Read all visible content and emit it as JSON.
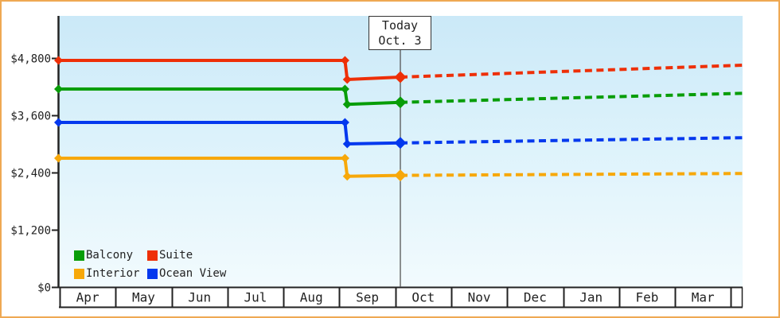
{
  "today_marker": {
    "line1": "Today",
    "line2": "Oct. 3"
  },
  "legend": {
    "items": [
      {
        "label": "Balcony",
        "color": "#089d08"
      },
      {
        "label": "Suite",
        "color": "#ee2f07"
      },
      {
        "label": "Interior",
        "color": "#f7a80a"
      },
      {
        "label": "Ocean View",
        "color": "#0438ee"
      }
    ]
  },
  "colors": {
    "axis": "#222222",
    "today_line": "#555555",
    "frame_border": "#efa953",
    "plot_bg_top": "#cbe9f8",
    "plot_bg_bottom": "#f2fbfe"
  },
  "chart_data": {
    "type": "line",
    "title": "",
    "xlabel": "",
    "ylabel": "",
    "x_unit": "months_since_apr_1",
    "categories": [
      "Apr",
      "May",
      "Jun",
      "Jul",
      "Aug",
      "Sep",
      "Oct",
      "Nov",
      "Dec",
      "Jan",
      "Feb",
      "Mar"
    ],
    "y_axis": {
      "tick_values": [
        0,
        1200,
        2400,
        3600,
        4800
      ],
      "tick_labels": [
        "$0",
        "$1,200",
        "$2,400",
        "$3,600",
        "$4,800"
      ],
      "ylim": [
        0,
        5700
      ]
    },
    "grid": false,
    "legend_position": "bottom-left-inside",
    "today": {
      "x": 6.09,
      "label": "Today",
      "date": "Oct. 3"
    },
    "series": [
      {
        "name": "Suite",
        "color": "#ee2f07",
        "solid_points": [
          [
            0,
            4750
          ],
          [
            5.1,
            4750
          ],
          [
            5.14,
            4350
          ],
          [
            6.09,
            4400
          ]
        ],
        "projection_points": [
          [
            6.09,
            4400
          ],
          [
            12.2,
            4650
          ]
        ]
      },
      {
        "name": "Balcony",
        "color": "#089d08",
        "solid_points": [
          [
            0,
            4150
          ],
          [
            5.1,
            4150
          ],
          [
            5.14,
            3830
          ],
          [
            6.09,
            3870
          ]
        ],
        "projection_points": [
          [
            6.09,
            3870
          ],
          [
            12.2,
            4060
          ]
        ]
      },
      {
        "name": "Ocean View",
        "color": "#0438ee",
        "solid_points": [
          [
            0,
            3450
          ],
          [
            5.1,
            3450
          ],
          [
            5.14,
            3000
          ],
          [
            6.09,
            3020
          ]
        ],
        "projection_points": [
          [
            6.09,
            3020
          ],
          [
            12.2,
            3130
          ]
        ]
      },
      {
        "name": "Interior",
        "color": "#f7a80a",
        "solid_points": [
          [
            0,
            2700
          ],
          [
            5.1,
            2700
          ],
          [
            5.14,
            2320
          ],
          [
            6.09,
            2340
          ]
        ],
        "projection_points": [
          [
            6.09,
            2340
          ],
          [
            12.2,
            2380
          ]
        ]
      }
    ]
  }
}
